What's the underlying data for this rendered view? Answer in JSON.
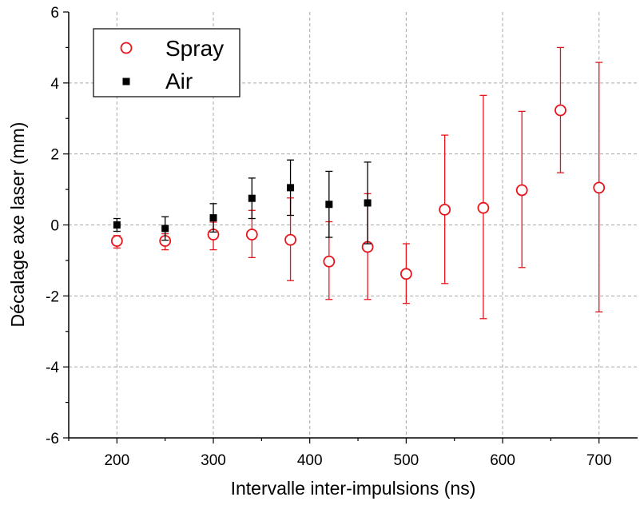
{
  "chart_data": {
    "type": "scatter",
    "title": "",
    "xlabel": "Intervalle inter-impulsions (ns)",
    "ylabel": "Décalage axe laser (mm)",
    "xlim": [
      150,
      740
    ],
    "ylim": [
      -6,
      6
    ],
    "xticks": [
      200,
      300,
      400,
      500,
      600,
      700
    ],
    "yticks": [
      -6,
      -4,
      -2,
      0,
      2,
      4,
      6
    ],
    "grid": true,
    "legend_position": "top-left",
    "series": [
      {
        "name": "Spray",
        "marker": "open-circle",
        "color": "#e8141c",
        "points": [
          {
            "x": 200,
            "y": -0.45,
            "err_low": 0.2,
            "err_high": 0.15
          },
          {
            "x": 250,
            "y": -0.45,
            "err_low": 0.25,
            "err_high": 0.2
          },
          {
            "x": 300,
            "y": -0.27,
            "err_low": 0.43,
            "err_high": 0.35
          },
          {
            "x": 340,
            "y": -0.27,
            "err_low": 0.65,
            "err_high": 0.68
          },
          {
            "x": 380,
            "y": -0.42,
            "err_low": 1.15,
            "err_high": 1.18
          },
          {
            "x": 420,
            "y": -1.03,
            "err_low": 1.07,
            "err_high": 1.12
          },
          {
            "x": 460,
            "y": -0.62,
            "err_low": 1.48,
            "err_high": 1.5
          },
          {
            "x": 500,
            "y": -1.38,
            "err_low": 0.83,
            "err_high": 0.85
          },
          {
            "x": 540,
            "y": 0.43,
            "err_low": 2.08,
            "err_high": 2.1
          },
          {
            "x": 580,
            "y": 0.48,
            "err_low": 3.12,
            "err_high": 3.17
          },
          {
            "x": 620,
            "y": 0.98,
            "err_low": 2.18,
            "err_high": 2.22
          },
          {
            "x": 660,
            "y": 3.23,
            "err_low": 1.76,
            "err_high": 1.77
          },
          {
            "x": 700,
            "y": 1.05,
            "err_low": 3.5,
            "err_high": 3.53
          }
        ]
      },
      {
        "name": "Air",
        "marker": "filled-square",
        "color": "#000000",
        "points": [
          {
            "x": 200,
            "y": 0.0,
            "err_low": 0.18,
            "err_high": 0.18
          },
          {
            "x": 250,
            "y": -0.1,
            "err_low": 0.33,
            "err_high": 0.33
          },
          {
            "x": 300,
            "y": 0.2,
            "err_low": 0.4,
            "err_high": 0.4
          },
          {
            "x": 340,
            "y": 0.75,
            "err_low": 0.57,
            "err_high": 0.57
          },
          {
            "x": 380,
            "y": 1.05,
            "err_low": 0.78,
            "err_high": 0.78
          },
          {
            "x": 420,
            "y": 0.58,
            "err_low": 0.93,
            "err_high": 0.93
          },
          {
            "x": 460,
            "y": 0.62,
            "err_low": 1.15,
            "err_high": 1.15
          }
        ]
      }
    ]
  }
}
